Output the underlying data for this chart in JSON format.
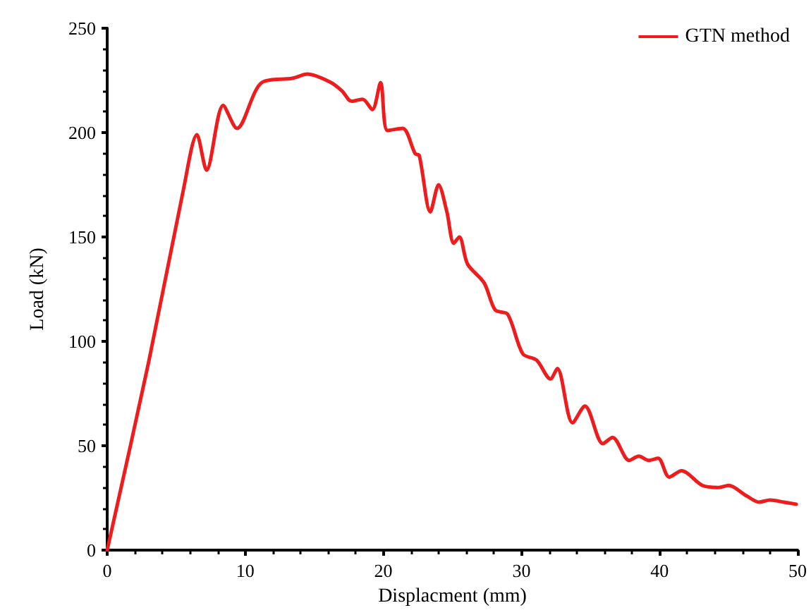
{
  "chart_data": {
    "type": "line",
    "xlabel": "Displacment (mm)",
    "ylabel": "Load (kN)",
    "xlim": [
      0,
      50
    ],
    "ylim": [
      0,
      250
    ],
    "xticks": [
      0,
      10,
      20,
      30,
      40,
      50
    ],
    "yticks": [
      0,
      50,
      100,
      150,
      200,
      250
    ],
    "grid": false,
    "legend": "top right",
    "marker": "none",
    "line_style": "solid",
    "series": [
      {
        "name": "GTN method",
        "color": "#ee1c1c",
        "x": [
          0,
          3,
          5.5,
          6.5,
          7.2,
          8.4,
          9.4,
          11.2,
          13.4,
          14.5,
          16.2,
          17,
          17.7,
          18.5,
          19.2,
          19.8,
          20.3,
          21.4,
          22.3,
          22.6,
          23.4,
          24,
          24.6,
          25.1,
          25.5,
          26.1,
          27.3,
          28.1,
          29,
          30.1,
          31.1,
          32.1,
          32.6,
          33.7,
          34.6,
          35.9,
          36.6,
          37.8,
          38.5,
          39.2,
          39.9,
          40.7,
          41.6,
          43.1,
          44.3,
          45,
          46.3,
          47.2,
          48,
          49,
          49.9
        ],
        "values": [
          0,
          90,
          172,
          199,
          182,
          213,
          202,
          224,
          226,
          228,
          224,
          220,
          215,
          216,
          211,
          224,
          201,
          202,
          190,
          189,
          162,
          175,
          162,
          147,
          150,
          137,
          128,
          115,
          113,
          94,
          91,
          82,
          87,
          61,
          69,
          51,
          54,
          43,
          45,
          43,
          44,
          35,
          38,
          31,
          30,
          31,
          26,
          23,
          24,
          23,
          22
        ]
      }
    ]
  }
}
